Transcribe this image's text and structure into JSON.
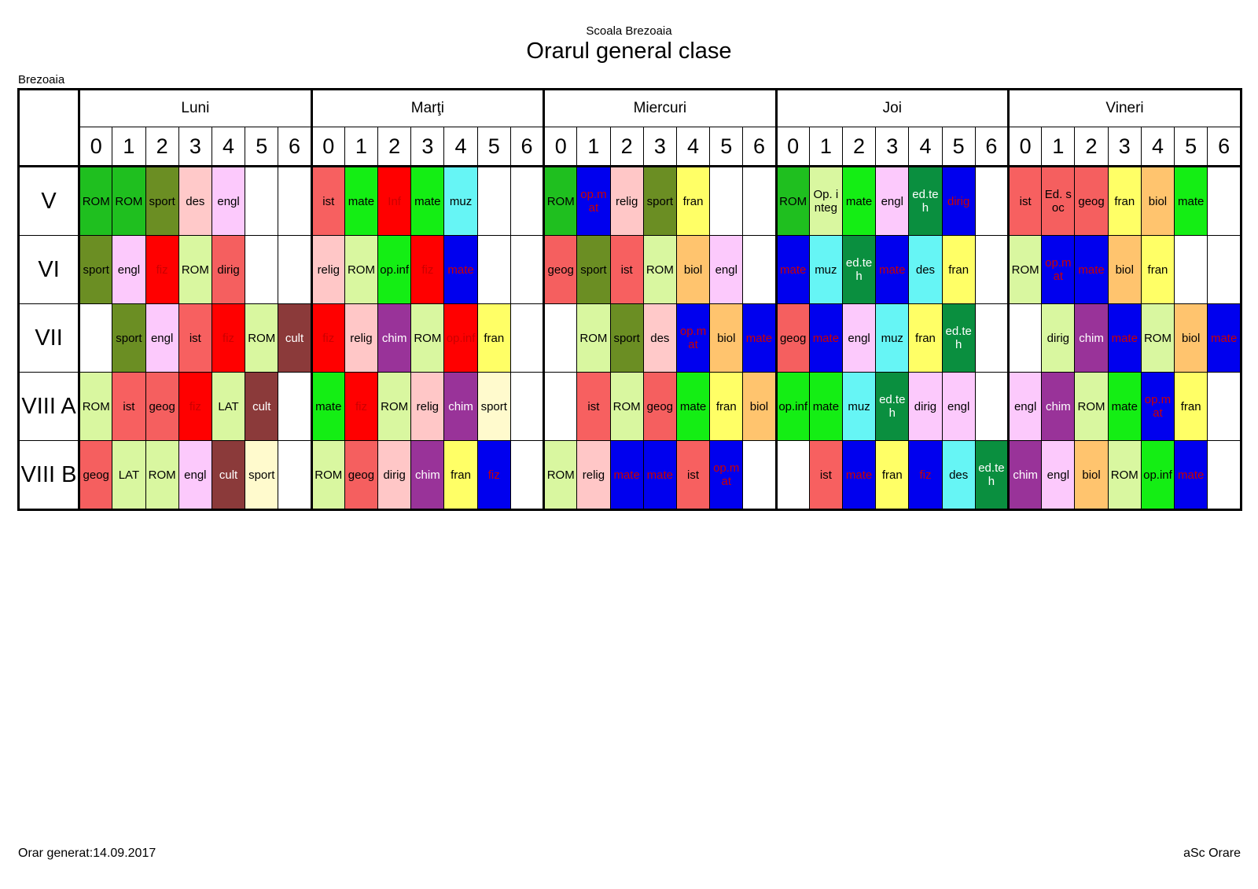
{
  "header": {
    "school": "Scoala Brezoaia",
    "title": "Orarul general clase",
    "location": "Brezoaia"
  },
  "days": [
    "Luni",
    "Marţi",
    "Miercuri",
    "Joi",
    "Vineri"
  ],
  "periods": [
    "0",
    "1",
    "2",
    "3",
    "4",
    "5",
    "6"
  ],
  "palette": {
    "ROM": "#1fbf1f",
    "ROM_light": "#d9f7a0",
    "sport": "#6b8e23",
    "sport_light": "#fffacd",
    "des": "#ffc9c9",
    "engl": "#fcc9fc",
    "ist": "#f76060",
    "mate_green": "#14ee14",
    "mate_blue": "#0000ee",
    "Inf": "#ff0000",
    "muz": "#66f5f5",
    "relig": "#ffc7c7",
    "fran": "#ffff66",
    "biol": "#ffc46e",
    "dirig": "#f55f5f",
    "geog": "#f55f5f",
    "fiz": "#ff0000",
    "chim": "#993399",
    "cult": "#8b3a3a",
    "edteh": "#0a8f3f",
    "opmat": "#0000ee",
    "opinf": "#14ee14",
    "LAT": "#d9f7a0",
    "opinteg": "#d9f7a0",
    "edsoc": "#f55f5f"
  },
  "rows": [
    {
      "class": "V",
      "days": [
        [
          {
            "t": "ROM",
            "bg": "#1fbf1f"
          },
          {
            "t": "ROM",
            "bg": "#1fbf1f"
          },
          {
            "t": "sport",
            "bg": "#6b8e23"
          },
          {
            "t": "des",
            "bg": "#ffc9c9"
          },
          {
            "t": "engl",
            "bg": "#fcc9fc"
          },
          {
            "t": "",
            "bg": ""
          },
          {
            "t": "",
            "bg": ""
          }
        ],
        [
          {
            "t": "ist",
            "bg": "#f76060"
          },
          {
            "t": "mate",
            "bg": "#14ee14"
          },
          {
            "t": "Inf",
            "bg": "#ff0000"
          },
          {
            "t": "mate",
            "bg": "#14ee14"
          },
          {
            "t": "muz",
            "bg": "#66f5f5"
          },
          {
            "t": "",
            "bg": ""
          },
          {
            "t": "",
            "bg": ""
          }
        ],
        [
          {
            "t": "ROM",
            "bg": "#1fbf1f"
          },
          {
            "t": "op.mat",
            "bg": "#0000ee"
          },
          {
            "t": "relig",
            "bg": "#ffc7c7"
          },
          {
            "t": "sport",
            "bg": "#6b8e23"
          },
          {
            "t": "fran",
            "bg": "#ffff66"
          },
          {
            "t": "",
            "bg": ""
          },
          {
            "t": "",
            "bg": ""
          }
        ],
        [
          {
            "t": "ROM",
            "bg": "#1fbf1f"
          },
          {
            "t": "Op. integ",
            "bg": "#d9f7a0"
          },
          {
            "t": "mate",
            "bg": "#14ee14"
          },
          {
            "t": "engl",
            "bg": "#fcc9fc"
          },
          {
            "t": "ed.teh",
            "bg": "#0a8f3f"
          },
          {
            "t": "dirig",
            "bg": "#0000ee"
          },
          {
            "t": "",
            "bg": ""
          }
        ],
        [
          {
            "t": "ist",
            "bg": "#f76060"
          },
          {
            "t": "Ed. soc",
            "bg": "#f55f5f"
          },
          {
            "t": "geog",
            "bg": "#f55f5f"
          },
          {
            "t": "fran",
            "bg": "#ffff66"
          },
          {
            "t": "biol",
            "bg": "#ffc46e"
          },
          {
            "t": "mate",
            "bg": "#14ee14"
          },
          {
            "t": "",
            "bg": ""
          }
        ]
      ]
    },
    {
      "class": "VI",
      "days": [
        [
          {
            "t": "sport",
            "bg": "#6b8e23"
          },
          {
            "t": "engl",
            "bg": "#fcc9fc"
          },
          {
            "t": "fiz",
            "bg": "#ff0000"
          },
          {
            "t": "ROM",
            "bg": "#d9f7a0"
          },
          {
            "t": "dirig",
            "bg": "#f55f5f"
          },
          {
            "t": "",
            "bg": ""
          },
          {
            "t": "",
            "bg": ""
          }
        ],
        [
          {
            "t": "relig",
            "bg": "#ffc7c7"
          },
          {
            "t": "ROM",
            "bg": "#d9f7a0"
          },
          {
            "t": "op.inf",
            "bg": "#14ee14"
          },
          {
            "t": "fiz",
            "bg": "#ff0000"
          },
          {
            "t": "mate",
            "bg": "#0000ee"
          },
          {
            "t": "",
            "bg": ""
          },
          {
            "t": "",
            "bg": ""
          }
        ],
        [
          {
            "t": "geog",
            "bg": "#f55f5f"
          },
          {
            "t": "sport",
            "bg": "#6b8e23"
          },
          {
            "t": "ist",
            "bg": "#f76060"
          },
          {
            "t": "ROM",
            "bg": "#d9f7a0"
          },
          {
            "t": "biol",
            "bg": "#ffc46e"
          },
          {
            "t": "engl",
            "bg": "#fcc9fc"
          },
          {
            "t": "",
            "bg": ""
          }
        ],
        [
          {
            "t": "mate",
            "bg": "#0000ee"
          },
          {
            "t": "muz",
            "bg": "#66f5f5"
          },
          {
            "t": "ed.teh",
            "bg": "#0a8f3f"
          },
          {
            "t": "mate",
            "bg": "#0000ee"
          },
          {
            "t": "des",
            "bg": "#66f5f5"
          },
          {
            "t": "fran",
            "bg": "#ffff66"
          },
          {
            "t": "",
            "bg": ""
          }
        ],
        [
          {
            "t": "ROM",
            "bg": "#d9f7a0"
          },
          {
            "t": "op.mat",
            "bg": "#0000ee"
          },
          {
            "t": "mate",
            "bg": "#0000ee"
          },
          {
            "t": "biol",
            "bg": "#ffc46e"
          },
          {
            "t": "fran",
            "bg": "#ffff66"
          },
          {
            "t": "",
            "bg": ""
          },
          {
            "t": "",
            "bg": ""
          }
        ]
      ]
    },
    {
      "class": "VII",
      "days": [
        [
          {
            "t": "",
            "bg": ""
          },
          {
            "t": "sport",
            "bg": "#6b8e23"
          },
          {
            "t": "engl",
            "bg": "#fcc9fc"
          },
          {
            "t": "ist",
            "bg": "#f76060"
          },
          {
            "t": "fiz",
            "bg": "#ff0000"
          },
          {
            "t": "ROM",
            "bg": "#d9f7a0"
          },
          {
            "t": "cult",
            "bg": "#8b3a3a"
          }
        ],
        [
          {
            "t": "fiz",
            "bg": "#ff0000"
          },
          {
            "t": "relig",
            "bg": "#ffc7c7"
          },
          {
            "t": "chim",
            "bg": "#993399"
          },
          {
            "t": "ROM",
            "bg": "#d9f7a0"
          },
          {
            "t": "op.inf",
            "bg": "#ff0000"
          },
          {
            "t": "fran",
            "bg": "#ffff66"
          },
          {
            "t": "",
            "bg": ""
          }
        ],
        [
          {
            "t": "",
            "bg": ""
          },
          {
            "t": "ROM",
            "bg": "#d9f7a0"
          },
          {
            "t": "sport",
            "bg": "#6b8e23"
          },
          {
            "t": "des",
            "bg": "#ffc9c9"
          },
          {
            "t": "op.mat",
            "bg": "#0000ee"
          },
          {
            "t": "biol",
            "bg": "#ffc46e"
          },
          {
            "t": "mate",
            "bg": "#0000ee"
          }
        ],
        [
          {
            "t": "geog",
            "bg": "#f55f5f"
          },
          {
            "t": "mate",
            "bg": "#0000ee"
          },
          {
            "t": "engl",
            "bg": "#fcc9fc"
          },
          {
            "t": "muz",
            "bg": "#66f5f5"
          },
          {
            "t": "fran",
            "bg": "#ffff66"
          },
          {
            "t": "ed.teh",
            "bg": "#0a8f3f"
          },
          {
            "t": "",
            "bg": ""
          }
        ],
        [
          {
            "t": "",
            "bg": ""
          },
          {
            "t": "dirig",
            "bg": "#d9f7a0"
          },
          {
            "t": "chim",
            "bg": "#993399"
          },
          {
            "t": "mate",
            "bg": "#0000ee"
          },
          {
            "t": "ROM",
            "bg": "#d9f7a0"
          },
          {
            "t": "biol",
            "bg": "#ffc46e"
          },
          {
            "t": "mate",
            "bg": "#0000ee"
          }
        ]
      ]
    },
    {
      "class": "VIII A",
      "days": [
        [
          {
            "t": "ROM",
            "bg": "#d9f7a0"
          },
          {
            "t": "ist",
            "bg": "#f76060"
          },
          {
            "t": "geog",
            "bg": "#f55f5f"
          },
          {
            "t": "fiz",
            "bg": "#ff0000"
          },
          {
            "t": "LAT",
            "bg": "#d9f7a0"
          },
          {
            "t": "cult",
            "bg": "#8b3a3a"
          },
          {
            "t": "",
            "bg": ""
          }
        ],
        [
          {
            "t": "mate",
            "bg": "#14ee14"
          },
          {
            "t": "fiz",
            "bg": "#ff0000"
          },
          {
            "t": "ROM",
            "bg": "#d9f7a0"
          },
          {
            "t": "relig",
            "bg": "#ffc7c7"
          },
          {
            "t": "chim",
            "bg": "#993399"
          },
          {
            "t": "sport",
            "bg": "#fffacd"
          },
          {
            "t": "",
            "bg": ""
          }
        ],
        [
          {
            "t": "",
            "bg": ""
          },
          {
            "t": "ist",
            "bg": "#f76060"
          },
          {
            "t": "ROM",
            "bg": "#d9f7a0"
          },
          {
            "t": "geog",
            "bg": "#f55f5f"
          },
          {
            "t": "mate",
            "bg": "#14ee14"
          },
          {
            "t": "fran",
            "bg": "#ffff66"
          },
          {
            "t": "biol",
            "bg": "#ffc46e"
          }
        ],
        [
          {
            "t": "op.inf",
            "bg": "#14ee14"
          },
          {
            "t": "mate",
            "bg": "#14ee14"
          },
          {
            "t": "muz",
            "bg": "#66f5f5"
          },
          {
            "t": "ed.teh",
            "bg": "#0a8f3f"
          },
          {
            "t": "dirig",
            "bg": "#fcc9fc"
          },
          {
            "t": "engl",
            "bg": "#fcc9fc"
          },
          {
            "t": "",
            "bg": ""
          }
        ],
        [
          {
            "t": "engl",
            "bg": "#fcc9fc"
          },
          {
            "t": "chim",
            "bg": "#993399"
          },
          {
            "t": "ROM",
            "bg": "#d9f7a0"
          },
          {
            "t": "mate",
            "bg": "#14ee14"
          },
          {
            "t": "op.mat",
            "bg": "#0000ee"
          },
          {
            "t": "fran",
            "bg": "#ffff66"
          },
          {
            "t": "",
            "bg": ""
          }
        ]
      ]
    },
    {
      "class": "VIII B",
      "days": [
        [
          {
            "t": "geog",
            "bg": "#f55f5f"
          },
          {
            "t": "LAT",
            "bg": "#d9f7a0"
          },
          {
            "t": "ROM",
            "bg": "#d9f7a0"
          },
          {
            "t": "engl",
            "bg": "#fcc9fc"
          },
          {
            "t": "cult",
            "bg": "#8b3a3a"
          },
          {
            "t": "sport",
            "bg": "#fffacd"
          },
          {
            "t": "",
            "bg": ""
          }
        ],
        [
          {
            "t": "ROM",
            "bg": "#d9f7a0"
          },
          {
            "t": "geog",
            "bg": "#f55f5f"
          },
          {
            "t": "dirig",
            "bg": "#ffc7c7"
          },
          {
            "t": "chim",
            "bg": "#993399"
          },
          {
            "t": "fran",
            "bg": "#ffff66"
          },
          {
            "t": "fiz",
            "bg": "#0000ee"
          },
          {
            "t": "",
            "bg": ""
          }
        ],
        [
          {
            "t": "ROM",
            "bg": "#d9f7a0"
          },
          {
            "t": "relig",
            "bg": "#ffc7c7"
          },
          {
            "t": "mate",
            "bg": "#0000ee"
          },
          {
            "t": "mate",
            "bg": "#0000ee"
          },
          {
            "t": "ist",
            "bg": "#f76060"
          },
          {
            "t": "op.mat",
            "bg": "#0000ee"
          },
          {
            "t": "",
            "bg": ""
          }
        ],
        [
          {
            "t": "",
            "bg": ""
          },
          {
            "t": "ist",
            "bg": "#f76060"
          },
          {
            "t": "mate",
            "bg": "#0000ee"
          },
          {
            "t": "fran",
            "bg": "#ffff66"
          },
          {
            "t": "fiz",
            "bg": "#0000ee"
          },
          {
            "t": "des",
            "bg": "#66f5f5"
          },
          {
            "t": "ed.teh",
            "bg": "#0a8f3f"
          }
        ],
        [
          {
            "t": "chim",
            "bg": "#993399"
          },
          {
            "t": "engl",
            "bg": "#fcc9fc"
          },
          {
            "t": "biol",
            "bg": "#ffc46e"
          },
          {
            "t": "ROM",
            "bg": "#d9f7a0"
          },
          {
            "t": "op.inf",
            "bg": "#14ee14"
          },
          {
            "t": "mate",
            "bg": "#0000ee"
          },
          {
            "t": "",
            "bg": ""
          }
        ]
      ]
    }
  ],
  "footer": {
    "generated": "Orar generat:14.09.2017",
    "software": "aSc Orare"
  }
}
